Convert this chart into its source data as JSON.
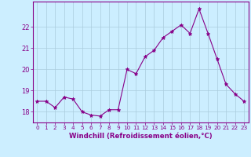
{
  "x": [
    0,
    1,
    2,
    3,
    4,
    5,
    6,
    7,
    8,
    9,
    10,
    11,
    12,
    13,
    14,
    15,
    16,
    17,
    18,
    19,
    20,
    21,
    22,
    23
  ],
  "y": [
    18.5,
    18.5,
    18.2,
    18.7,
    18.6,
    18.0,
    17.85,
    17.8,
    18.1,
    18.1,
    20.0,
    19.8,
    20.6,
    20.9,
    21.5,
    21.8,
    22.1,
    21.7,
    22.85,
    21.7,
    20.5,
    19.3,
    18.85,
    18.5
  ],
  "line_color": "#880088",
  "marker": "*",
  "marker_size": 3.5,
  "bg_color": "#cceeff",
  "grid_color": "#aaccdd",
  "tick_color": "#880088",
  "label_color": "#880088",
  "xlabel": "Windchill (Refroidissement éolien,°C)",
  "ylim": [
    17.5,
    23.2
  ],
  "xlim": [
    -0.5,
    23.5
  ],
  "yticks": [
    18,
    19,
    20,
    21,
    22
  ],
  "ytick_labels": [
    "18",
    "19",
    "20",
    "21",
    "22"
  ],
  "xticks": [
    0,
    1,
    2,
    3,
    4,
    5,
    6,
    7,
    8,
    9,
    10,
    11,
    12,
    13,
    14,
    15,
    16,
    17,
    18,
    19,
    20,
    21,
    22,
    23
  ]
}
